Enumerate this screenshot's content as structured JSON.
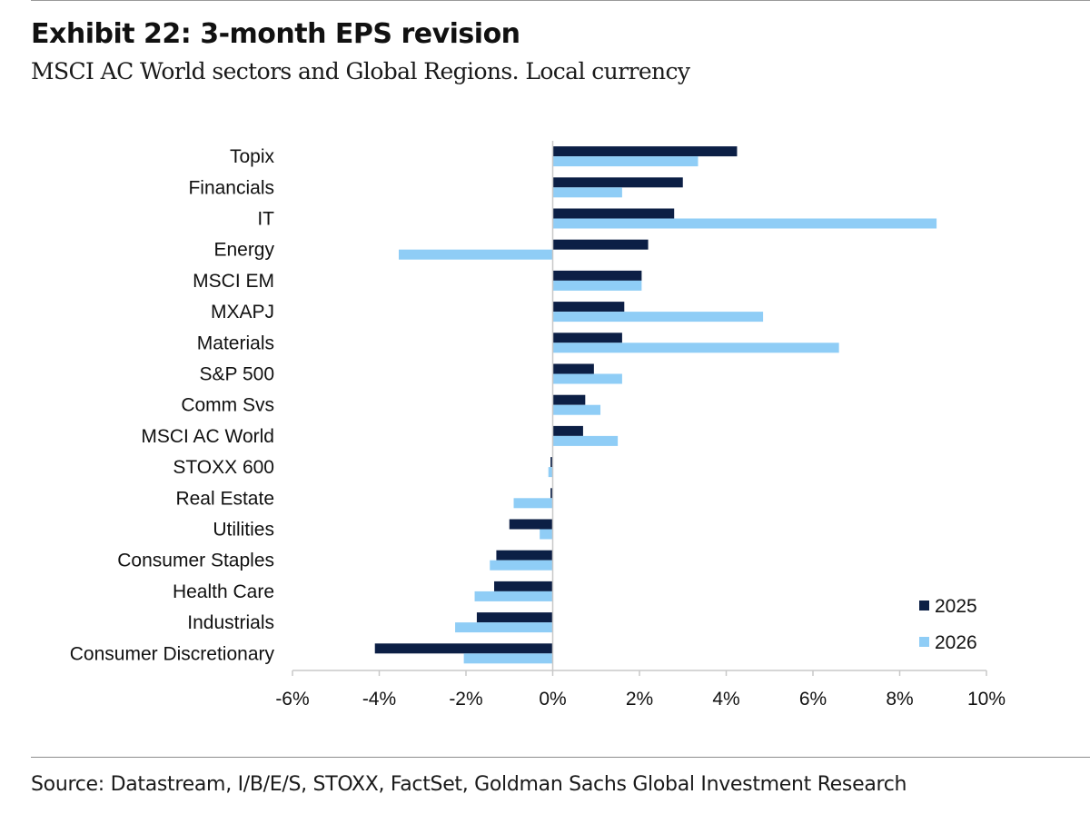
{
  "header": {
    "title": "Exhibit 22: 3-month EPS revision",
    "subtitle": "MSCI AC World sectors and Global Regions. Local currency"
  },
  "footer": {
    "source": "Source: Datastream, I/B/E/S, STOXX, FactSet, Goldman Sachs Global Investment Research"
  },
  "colors": {
    "series_2025": "#0c1f45",
    "series_2026": "#8fcdf6",
    "axis": "#c8c8c8"
  },
  "chart_data": {
    "type": "bar",
    "orientation": "horizontal",
    "title": "Exhibit 22: 3-month EPS revision",
    "subtitle": "MSCI AC World sectors and Global Regions. Local currency",
    "xlabel": "",
    "ylabel": "",
    "xlim": [
      -6,
      10
    ],
    "x_ticks": [
      -6,
      -4,
      -2,
      0,
      2,
      4,
      6,
      8,
      10
    ],
    "tick_suffix": "%",
    "grid": false,
    "legend_position": "bottom-right",
    "categories": [
      "Topix",
      "Financials",
      "IT",
      "Energy",
      "MSCI EM",
      "MXAPJ",
      "Materials",
      "S&P 500",
      "Comm Svs",
      "MSCI AC World",
      "STOXX 600",
      "Real Estate",
      "Utilities",
      "Consumer Staples",
      "Health Care",
      "Industrials",
      "Consumer Discretionary"
    ],
    "series": [
      {
        "name": "2025",
        "values": [
          4.25,
          3.0,
          2.8,
          2.2,
          2.05,
          1.65,
          1.6,
          0.95,
          0.75,
          0.7,
          -0.05,
          -0.05,
          -1.0,
          -1.3,
          -1.35,
          -1.75,
          -4.1
        ]
      },
      {
        "name": "2026",
        "values": [
          3.35,
          1.6,
          8.85,
          -3.55,
          2.05,
          4.85,
          6.6,
          1.6,
          1.1,
          1.5,
          -0.1,
          -0.9,
          -0.3,
          -1.45,
          -1.8,
          -2.25,
          -2.05
        ]
      }
    ]
  }
}
